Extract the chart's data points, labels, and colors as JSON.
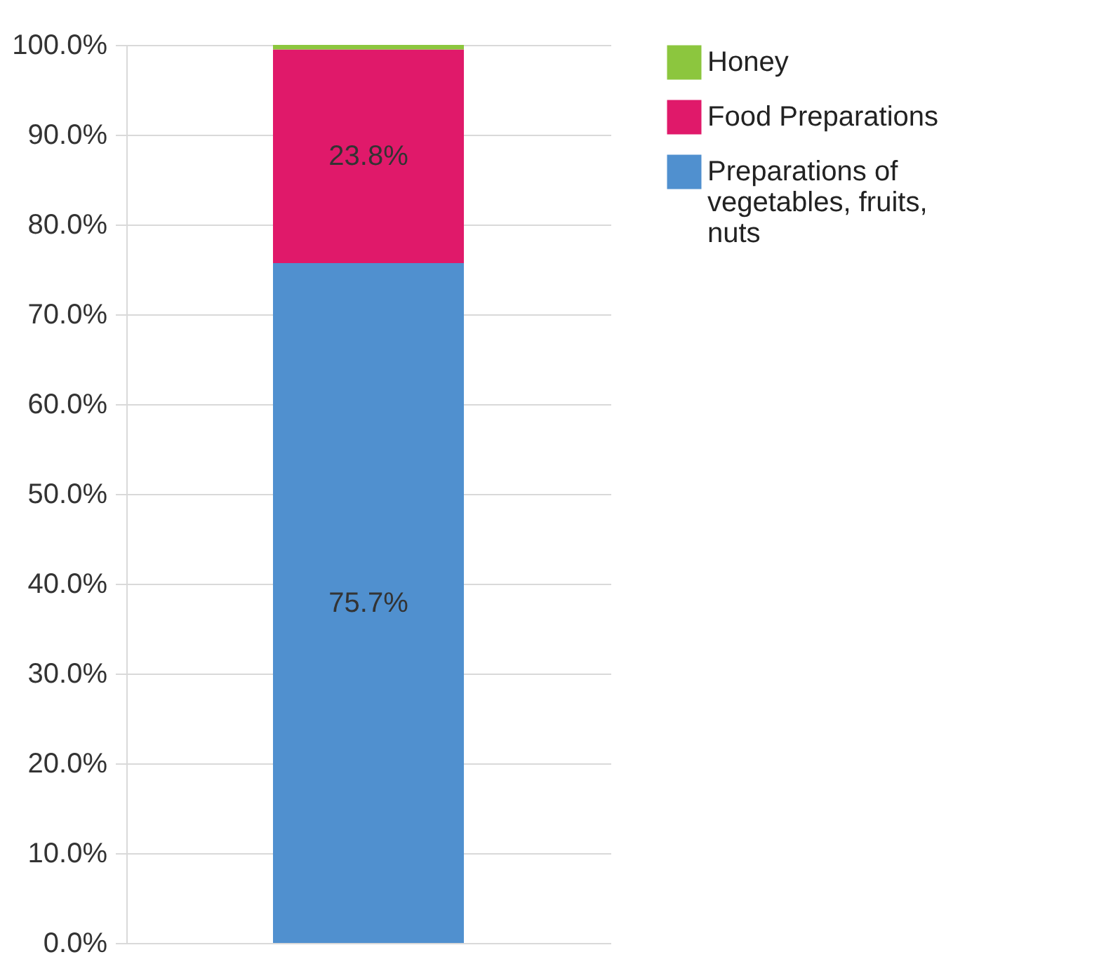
{
  "chart_data": {
    "type": "bar",
    "stacked": true,
    "categories": [
      null
    ],
    "series": [
      {
        "name": "Preparations of vegetables, fruits, nuts",
        "color": "#5090cf",
        "values": [
          75.7
        ],
        "value_labels": [
          "75.7%"
        ]
      },
      {
        "name": "Food Preparations",
        "color": "#e0196a",
        "values": [
          23.8
        ],
        "value_labels": [
          "23.8%"
        ]
      },
      {
        "name": "Honey",
        "color": "#8cc63e",
        "values": [
          0.5
        ],
        "value_labels": [
          null
        ]
      }
    ],
    "ylim": [
      0,
      100
    ],
    "yticks": [
      {
        "value": 0,
        "label": "0.0%"
      },
      {
        "value": 10,
        "label": "10.0%"
      },
      {
        "value": 20,
        "label": "20.0%"
      },
      {
        "value": 30,
        "label": "30.0%"
      },
      {
        "value": 40,
        "label": "40.0%"
      },
      {
        "value": 50,
        "label": "50.0%"
      },
      {
        "value": 60,
        "label": "60.0%"
      },
      {
        "value": 70,
        "label": "70.0%"
      },
      {
        "value": 80,
        "label": "80.0%"
      },
      {
        "value": 90,
        "label": "90.0%"
      },
      {
        "value": 100,
        "label": "100.0%"
      }
    ],
    "grid": "y",
    "legend": "right"
  }
}
